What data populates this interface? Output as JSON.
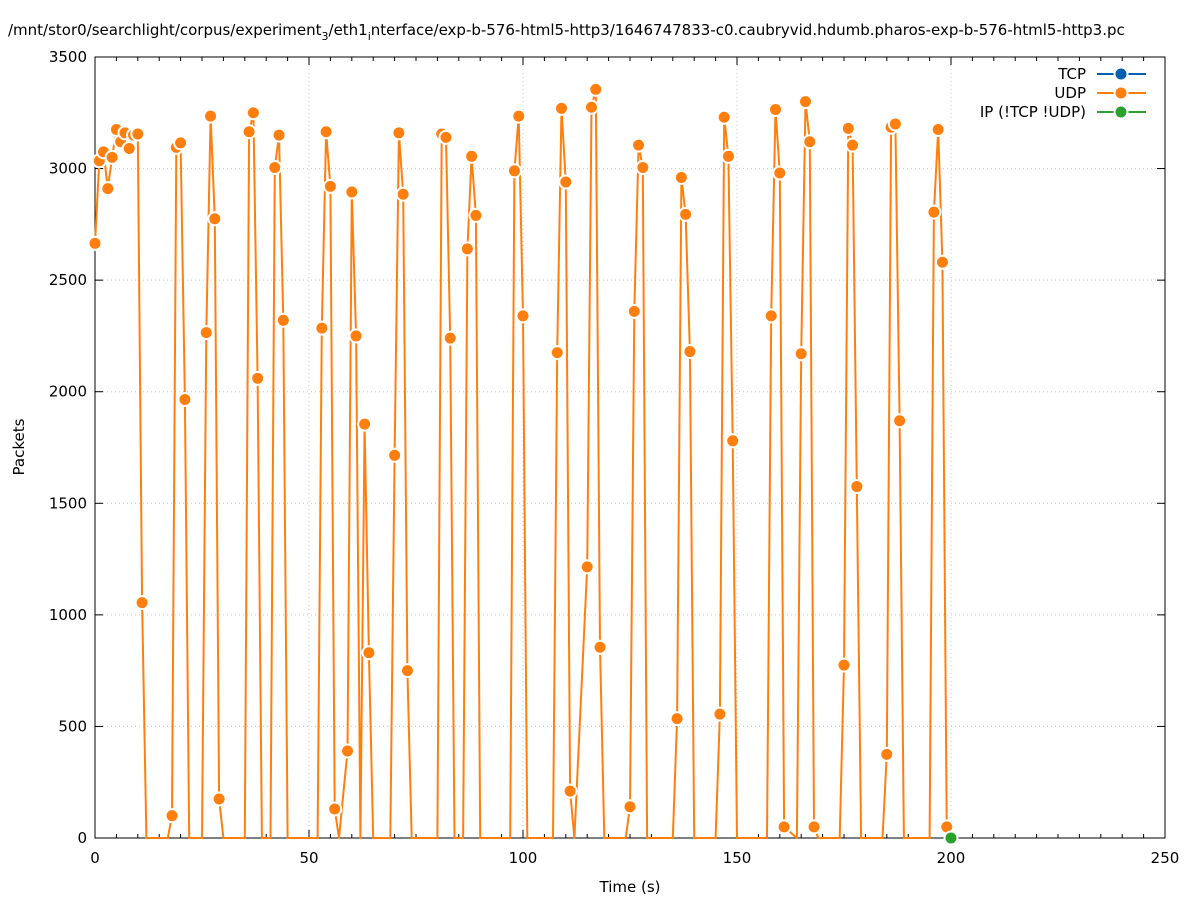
{
  "chart_data": {
    "type": "line",
    "title": "/mnt/stor0/searchlight/corpus/experiment_3/eth1_interface/exp-b-576-html5-http3/1646747833-c0.caubryvid.hdumb.pharos-exp-b-576-html5-http3.pc",
    "title_parts": {
      "p1": "/mnt/stor0/searchlight/corpus/experiment",
      "sub1": "3",
      "p2": "/eth1",
      "sub2": "i",
      "p3": "nterface/exp-b-576-html5-http3/1646747833-c0.caubryvid.hdumb.pharos-exp-b-576-html5-http3.pc"
    },
    "xlabel": "Time (s)",
    "ylabel": "Packets",
    "xlim": [
      0,
      250
    ],
    "ylim": [
      0,
      3500
    ],
    "xticks": [
      0,
      50,
      100,
      150,
      200,
      250
    ],
    "yticks": [
      0,
      500,
      1000,
      1500,
      2000,
      2500,
      3000,
      3500
    ],
    "grid": true,
    "legend_position": "top-right",
    "series": [
      {
        "name": "TCP",
        "color": "#0060ad",
        "points": []
      },
      {
        "name": "UDP",
        "color": "#ff7f0e",
        "points": [
          [
            0,
            2665
          ],
          [
            1,
            3035
          ],
          [
            2,
            3075
          ],
          [
            3,
            2910
          ],
          [
            4,
            3050
          ],
          [
            5,
            3175
          ],
          [
            6,
            3120
          ],
          [
            7,
            3160
          ],
          [
            8,
            3090
          ],
          [
            9,
            3150
          ],
          [
            10,
            3155
          ],
          [
            11,
            1055
          ],
          [
            12,
            0
          ],
          [
            17,
            0
          ],
          [
            18,
            100
          ],
          [
            19,
            3095
          ],
          [
            20,
            3115
          ],
          [
            21,
            1965
          ],
          [
            22,
            0
          ],
          [
            25,
            0
          ],
          [
            26,
            2265
          ],
          [
            27,
            3235
          ],
          [
            28,
            2775
          ],
          [
            29,
            175
          ],
          [
            30,
            0
          ],
          [
            35,
            0
          ],
          [
            36,
            3165
          ],
          [
            37,
            3250
          ],
          [
            38,
            2060
          ],
          [
            39,
            0
          ],
          [
            41,
            0
          ],
          [
            42,
            3005
          ],
          [
            43,
            3150
          ],
          [
            44,
            2320
          ],
          [
            45,
            0
          ],
          [
            52,
            0
          ],
          [
            53,
            2285
          ],
          [
            54,
            3165
          ],
          [
            55,
            2920
          ],
          [
            56,
            130
          ],
          [
            57,
            0
          ],
          [
            59,
            390
          ],
          [
            60,
            2895
          ],
          [
            61,
            2250
          ],
          [
            62,
            0
          ],
          [
            63,
            1855
          ],
          [
            64,
            830
          ],
          [
            65,
            0
          ],
          [
            69,
            0
          ],
          [
            70,
            1715
          ],
          [
            71,
            3160
          ],
          [
            72,
            2885
          ],
          [
            73,
            750
          ],
          [
            74,
            0
          ],
          [
            80,
            0
          ],
          [
            81,
            3155
          ],
          [
            82,
            3140
          ],
          [
            83,
            2240
          ],
          [
            84,
            0
          ],
          [
            86,
            0
          ],
          [
            87,
            2640
          ],
          [
            88,
            3055
          ],
          [
            89,
            2790
          ],
          [
            90,
            0
          ],
          [
            97,
            0
          ],
          [
            98,
            2990
          ],
          [
            99,
            3235
          ],
          [
            100,
            2340
          ],
          [
            101,
            0
          ],
          [
            107,
            0
          ],
          [
            108,
            2175
          ],
          [
            109,
            3270
          ],
          [
            110,
            2940
          ],
          [
            111,
            210
          ],
          [
            112,
            0
          ],
          [
            115,
            1215
          ],
          [
            116,
            3275
          ],
          [
            117,
            3355
          ],
          [
            118,
            855
          ],
          [
            119,
            0
          ],
          [
            124,
            0
          ],
          [
            125,
            140
          ],
          [
            126,
            2360
          ],
          [
            127,
            3105
          ],
          [
            128,
            3005
          ],
          [
            129,
            0
          ],
          [
            135,
            0
          ],
          [
            136,
            535
          ],
          [
            137,
            2960
          ],
          [
            138,
            2795
          ],
          [
            139,
            2180
          ],
          [
            140,
            0
          ],
          [
            145,
            0
          ],
          [
            146,
            555
          ],
          [
            147,
            3230
          ],
          [
            148,
            3055
          ],
          [
            149,
            1780
          ],
          [
            150,
            0
          ],
          [
            157,
            0
          ],
          [
            158,
            2340
          ],
          [
            159,
            3265
          ],
          [
            160,
            2980
          ],
          [
            161,
            50
          ],
          [
            164,
            0
          ],
          [
            165,
            2170
          ],
          [
            166,
            3300
          ],
          [
            167,
            3120
          ],
          [
            168,
            50
          ],
          [
            169,
            0
          ],
          [
            174,
            0
          ],
          [
            175,
            775
          ],
          [
            176,
            3180
          ],
          [
            177,
            3105
          ],
          [
            178,
            1575
          ],
          [
            179,
            0
          ],
          [
            184,
            0
          ],
          [
            185,
            375
          ],
          [
            186,
            3185
          ],
          [
            187,
            3200
          ],
          [
            188,
            1870
          ],
          [
            189,
            0
          ],
          [
            195,
            0
          ],
          [
            196,
            2805
          ],
          [
            197,
            3175
          ],
          [
            198,
            2580
          ],
          [
            199,
            50
          ]
        ]
      },
      {
        "name": "IP (!TCP  !UDP)",
        "color": "#2ca02c",
        "points": [
          [
            200,
            0
          ]
        ]
      }
    ]
  }
}
